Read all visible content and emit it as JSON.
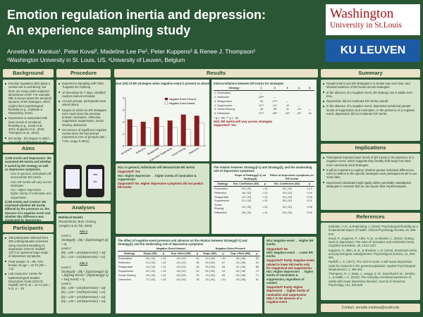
{
  "header": {
    "title": [
      "Emotion regulation inertia and depression:",
      "An experience sampling study"
    ],
    "authors": "Annette M. Mankus¹, Peter Koval², Madeline Lee Pe², Peter Kuppens² & Renee J. Thompson¹",
    "affiliation": "¹Washington University in St. Louis, US, ²University of Leuven, Belgium",
    "logo_washu": [
      "Washington",
      "University in St.Louis"
    ],
    "logo_kul": "KU LEUVEN"
  },
  "background": {
    "heading": "Background",
    "items": [
      "Emotion regulation (ER) plays a central role in well-being, but there are many under-explored dimensions of ER. For example, little is known about the temporal dynamic of ER strategies, which might inform psychological flexibility (e.g., Kashdan & Rottenberg, 2010).",
      "Depression is associated with lower levels of emotional flexibility (e.g., Koval et al., 2012; Kuppens et al., 2010; Thompson et al., 2012).",
      "ER inertia - the degree to which one rigidly implements an ER strategy from one point in time to the next - might help to clarify components of psychological flexibility."
    ]
  },
  "aims": {
    "heading": "Aims",
    "aim1": {
      "text": "1) ER Inertia and Depression: We examined ER inertia and whether it varied by ER strategy as well as depressive symptoms.",
      "hypotheses": [
        "H1a: In general, individuals will demonstrate ER inertia.",
        "H1b: ER inertia will vary across strategies.",
        "H1c: Higher depressive → higher inertia of rumination and suppression."
      ]
    },
    "aim2": {
      "text": "2) ER Inertia and Context: We examined whether ER inertia differed by the presence vs. the absence of a negative event and whether this difference was moderated by depression.",
      "hypotheses": [
        "H2a: Negative event → Higher ER inertia",
        "H2b: Negative event → Lower ER inertia",
        "H2c: Higher depressive → Higher inertia of rumination & suppression, regardless of context"
      ]
    }
  },
  "participants": {
    "heading": "Participants",
    "items": [
      "138 participants selected from 450 undergraduates screened using recurrent sampling on depression (CES-D; Radloff, 1977) to represent large range of depressive symptoms.",
      "Final sample: N = 95; 71% female; M age = 19.70 (SD = 1.5)",
      "Lab measures: Center for Epidemiological Studies Depression Scale (CES-D; Radloff, 1977): M = 14.71 (SD = 9.2), α = .91"
    ]
  },
  "procedure": {
    "heading": "Procedure",
    "items": [
      "Experience Sampling with Palm Tungsten E2 Palmtop",
      "10 times/day for 7 days, stratified random interval schedule",
      "At each prompt, participants were asked about:",
      "Degree to which six ER strategies were used since the previous prompt: rumination, reflection, reappraisal, suppression, social sharing, distraction",
      "Occurrence of significant negative events since the last prompt (reported at 11% of prompts (SD = 7.8%; range 0-49%))"
    ],
    "screen_options": [
      "Yes",
      "No"
    ]
  },
  "analyses": {
    "heading": "Analyses",
    "title": "Multilevel Models",
    "citation": "(Raudenbush, Bryk, Cheong, Congdon & du Toit, 2004)",
    "aim1": {
      "label": "Aim 1",
      "equations": [
        "Level 1:",
        "Strategy(t) = β0j + β1j(Strategy(t-1)) + rtj",
        "Level 2:",
        "β0j = γ00 + γ01(depression) + u0j",
        "β1j = γ10 + γ11(depression) + u1j"
      ]
    },
    "aim2": {
      "label": "Aim 2",
      "equations": [
        "Level 1:",
        "Strategy(t) = β0j + β1j(Strategy(t-1)) + β2j(Neg Event) + β3j(Strategy(t-1) × Neg Event) + rtj",
        "Level 2:",
        "β0j = γ00 + γ01(depression) + u0j",
        "β1j = γ10 + γ11(depression) + u1j",
        "β2j = γ20 + γ21(depression) + u2j",
        "β3j = γ30 + γ31(depression) + u3j"
      ]
    }
  },
  "results": {
    "heading": "Results",
    "chart": {
      "type": "bar",
      "title": "Mean (SD) of ER strategies when negative event is present vs absent",
      "categories": [
        "Rumination",
        "Reflection",
        "Reappraisal",
        "Expressive Suppression",
        "Social Sharing",
        "Distraction"
      ],
      "series": [
        {
          "name": "Negative Event Present",
          "color": "#8b1a1a",
          "values": [
            2.2,
            2.0,
            2.4,
            2.1,
            2.6,
            2.5
          ]
        },
        {
          "name": "Negative Event Absent",
          "color": "#ffffff",
          "values": [
            1.6,
            1.5,
            1.6,
            1.5,
            1.4,
            1.9
          ]
        }
      ],
      "ylim": [
        0,
        4
      ],
      "yticks": [
        0,
        1,
        2,
        3,
        4
      ]
    },
    "table1": {
      "title": "Intercorrelations between ER inertia for strategies",
      "columns": [
        "Strategy",
        "1",
        "2",
        "3",
        "4",
        "5"
      ],
      "rows": [
        [
          "1. Rumination",
          "—"
        ],
        [
          "2. Reflection",
          ".28**",
          "—"
        ],
        [
          "3. Reappraisal",
          ".16",
          ".27**",
          "—"
        ],
        [
          "4. Suppression",
          ".37**",
          ".21*",
          ".12",
          "—"
        ],
        [
          "5. Social Sharing",
          ".18",
          ".08",
          ".11",
          ".13",
          "—"
        ],
        [
          "6. Distraction",
          ".37**",
          ".28**",
          ".25*",
          ".22*",
          ".16"
        ]
      ],
      "note": "* p < .05, ** p < .01",
      "hypothesis": "H1b: ER inertia will vary across strategies",
      "supported": "Supported? Yes"
    },
    "notes1": [
      "H1a: In general, individuals will demonstrate ER inertia",
      "Supported? Yes",
      "H1c: Higher depressive → higher inertia of rumination & suppression",
      "Supported? No. Higher depressive symptoms did not predict ER inertia"
    ],
    "table2": {
      "caption": "The relation between Strategy(t-1) and Strategy(t), and the moderating role of depressive symptoms",
      "groups": [
        "Slope of Strategy(t-1) on Strategy(t)",
        "Effect of depressive symptoms on ER inertia"
      ],
      "columns": [
        "Strategy",
        "Est. Coefficient (SE)",
        "p",
        "Est. Coefficient (SE)",
        "p"
      ],
      "rows": [
        [
          "Rumination",
          ".20 (.02)",
          "<.01",
          ".03 (.02)",
          "0.13"
        ],
        [
          "Reflection",
          ".18 (.02)",
          "<.01",
          ".03 (.02)",
          "0.19"
        ],
        [
          "Reappraisal",
          ".13 (.02)",
          "<.01",
          ".02 (.02)",
          "0.26"
        ],
        [
          "Suppression",
          ".21 (.02)",
          "<.01",
          ".05 (.02)",
          "0.01"
        ],
        [
          "Social Sharing",
          ".19 (.02)",
          "<.01",
          ".04 (.02)",
          "0.08"
        ],
        [
          "Distraction",
          ".18 (.02)",
          "<.01",
          ".03 (.02)",
          "0.09"
        ]
      ]
    },
    "table3": {
      "caption": "The effect of negative event presence and absence on the relation between Strategy(t-1) and Strategy(t), and the moderating role of depressive symptoms",
      "groups": [
        "Negative Event Absent",
        "Negative Event Present"
      ],
      "columns": [
        "Strategy",
        "Slope (SE)",
        "p",
        "Dep. effect (SE)",
        "p",
        "Slope (SE)",
        "p",
        "Dep. effect (SE)",
        "p"
      ],
      "rows": [
        [
          "Rumination",
          ".18 (.02)",
          "<.01",
          ".05 (.02)",
          ".01",
          ".19 (.06)",
          "<.01",
          ".06 (.06)",
          ".32"
        ],
        [
          "Reflection",
          ".21 (.02)",
          "<.01",
          ".02 (.02)",
          ".35",
          ".09 (.05)",
          ".07",
          ".01 (.05)",
          ".91"
        ],
        [
          "Reappraisal",
          ".14 (.02)",
          "<.01",
          ".03 (.02)",
          ".18",
          ".03 (.05)",
          ".53",
          ".01 (.05)",
          ".85"
        ],
        [
          "Suppression",
          ".22 (.02)",
          "<.01",
          ".05 (.02)",
          ".01",
          ".09 (.06)",
          ".12",
          ".02 (.06)",
          ".72"
        ],
        [
          "Social Sharing",
          ".19 (.02)",
          "<.01",
          ".03 (.02)",
          ".12",
          ".13 (.06)",
          ".03",
          ".02 (.06)",
          ".71"
        ],
        [
          "Distraction",
          ".17 (.02)",
          "<.01",
          ".03 (.02)",
          ".15",
          ".15 (.05)",
          "<.01",
          ".03 (.05)",
          ".61"
        ]
      ]
    },
    "notes2": [
      "H2a: Negative event → Higher ER inertia",
      "Supported? No",
      "H2b: Negative event → Lower ER inertia",
      "Supported? Partly. Negative event related to lower ER inertia only for reappraisal and suppression.",
      "H2c: Higher depression → higher inertia of rumination & suppression, regardless of context",
      "Supported? Partly. Higher depression → higher inertia of rumination and suppression ONLY in the absence of a negative event"
    ]
  },
  "summary": {
    "heading": "Summary",
    "items": [
      "People tend to use ER strategies in a similar way over time, and showed evidence of ER inertia across strategies.",
      "In the absence of a negative event, ER strategy use is stable over time.",
      "Depression did not moderate ER inertia overall.",
      "In the absence of a negative event, depression predicted greater inertia of suppression and rumination. In the presence of a negative event, depression did not moderate ER inertia."
    ]
  },
  "implications": {
    "heading": "Implications",
    "items": [
      "Participants reported lower levels of ER inertia in the presence of a negative event, which suggests they flexibly shift away from their more commonly used strategies.",
      "It will be important to explore whether greater individual differences exist in relation to the specific strategies each participant tends to use most often.",
      "Depressed individuals might rigidly utilize potentially maladaptive strategies in contexts that do not require their implementation."
    ]
  },
  "references": {
    "heading": "References",
    "items": [
      "Kashdan, T. B., & Rottenberg, J. (2010). Psychological flexibility as a fundamental aspect of health. Clinical Psychology Review, 30, 865-878.",
      "Koval, P., Kuppens, P., Allen, N. B., & Sheeber, L. (2012). Getting stuck in depression: The roles of rumination and emotional inertia. Cognition & Emotion, 26, 1412-1427.",
      "Kuppens, P., Allen, N. B., & Sheeber, L. B. (2010). Emotional inertia and psychological maladjustment. Psychological Science, 21, 984-991.",
      "Radloff, L. S. (1977). The CES-D scale: A self-report depression scale for research in the general population. Applied Psychological Measurement, 1, 385-401.",
      "Thompson, R. J., Mata, J., Jaeggi, S. M., Buschkuehl, M., Jonides, J., & Gotlib, I. H. (2012). The everyday emotional experience of adults with major depressive disorder. Journal of Abnormal Psychology, 121, 819-829."
    ],
    "contact": "Contact: annette.mankus@wustl.edu"
  }
}
